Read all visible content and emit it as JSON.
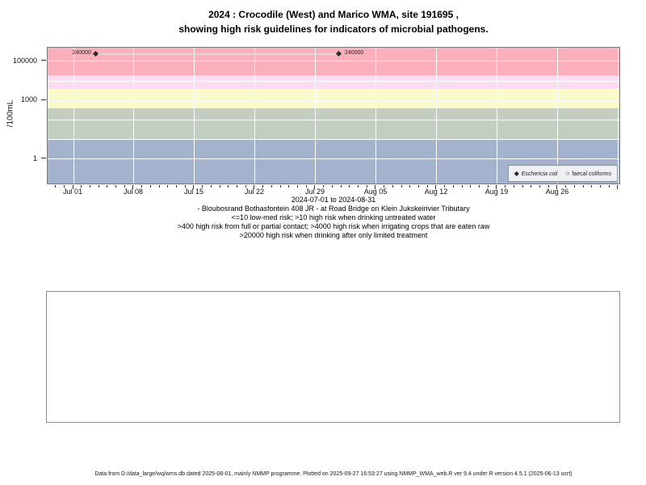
{
  "title": {
    "line1": "2024 : Crocodile (West) and Marico WMA, site 191695 ,",
    "line2": "showing high risk guidelines for indicators of microbial pathogens."
  },
  "chart_data": {
    "type": "scatter",
    "title": "2024 : Crocodile (West) and Marico WMA, site 191695 , showing high risk guidelines for indicators of microbial pathogens.",
    "ylabel": "/100mL",
    "xlabel": "",
    "y_scale": "log10",
    "ylim_log10": [
      -1.33,
      5.7
    ],
    "y_axis_ticks": [
      "100000",
      "1000",
      "1"
    ],
    "y_tick_values": [
      100000,
      1000,
      1
    ],
    "x_tick_labels": [
      "Jul 01",
      "Jul 08",
      "Jul 15",
      "Jul 22",
      "Jul 29",
      "Aug 05",
      "Aug 12",
      "Aug 19",
      "Aug 26"
    ],
    "x_range_note": "2024-07-01 to 2024-08-31",
    "grid": true,
    "gridline_color": "#ffffff",
    "legend_position": "bottom-right",
    "series": [
      {
        "name": "Eschericia coli",
        "marker": "filled-diamond",
        "color": "#2a2a2a",
        "connector_color": "#d9d9d9",
        "points": [
          {
            "date": "2024-07-03",
            "day_offset": 2.6,
            "value": 240000,
            "label": "240000",
            "label_side": "left"
          },
          {
            "date": "2024-07-31",
            "day_offset": 30.7,
            "value": 240000,
            "label": "240000",
            "label_side": "right"
          }
        ]
      },
      {
        "name": "faecal coliforms",
        "marker": "open-circle",
        "color": "#555555",
        "points": []
      }
    ],
    "risk_bands": [
      {
        "name": "high risk when drinking after only limited treatment",
        "min": 20000,
        "max": null,
        "color": "#fbafba"
      },
      {
        "name": "high risk when irrigating crops that are eaten raw",
        "min": 4000,
        "max": 20000,
        "color": "#fbddf3"
      },
      {
        "name": "high risk from full or partial contact",
        "min": 400,
        "max": 4000,
        "color": "#fafacd"
      },
      {
        "name": "high risk when drinking untreated water",
        "min": 10,
        "max": 400,
        "color": "#c2cec0"
      },
      {
        "name": "low-med risk",
        "min": null,
        "max": 10,
        "color": "#a3b3ce"
      }
    ]
  },
  "legend": {
    "items": [
      {
        "marker": "filled-diamond",
        "glyph": "◆",
        "label": "Eschericia coli",
        "italic": true
      },
      {
        "marker": "open-circle",
        "glyph": "○",
        "label": "faecal coliforms",
        "italic": false
      }
    ]
  },
  "caption": {
    "date_range": "2024-07-01 to 2024-08-31",
    "site_line": "- Bloubosrand Bothasfontein 408 JR - at Road Bridge on Klein Jukskeirivier Tributary",
    "risk_line1": "<=10 low-med risk; >10 high risk when drinking untreated water",
    "risk_line2": ">400 high risk from full or partial contact; >4000 high risk when irrigating crops that are eaten raw",
    "risk_line3": ">20000 high risk when drinking after only limited treatment"
  },
  "footer": {
    "text": "Data from D:/data_large/wq/wms.db dated 2025-08-01, mainly NMMP programme. Plotted on 2025-09-27 16:53:27 using NMMP_WMA_web.R ver 9.4 under R version 4.5.1 (2025-06-13 ucrt)"
  }
}
